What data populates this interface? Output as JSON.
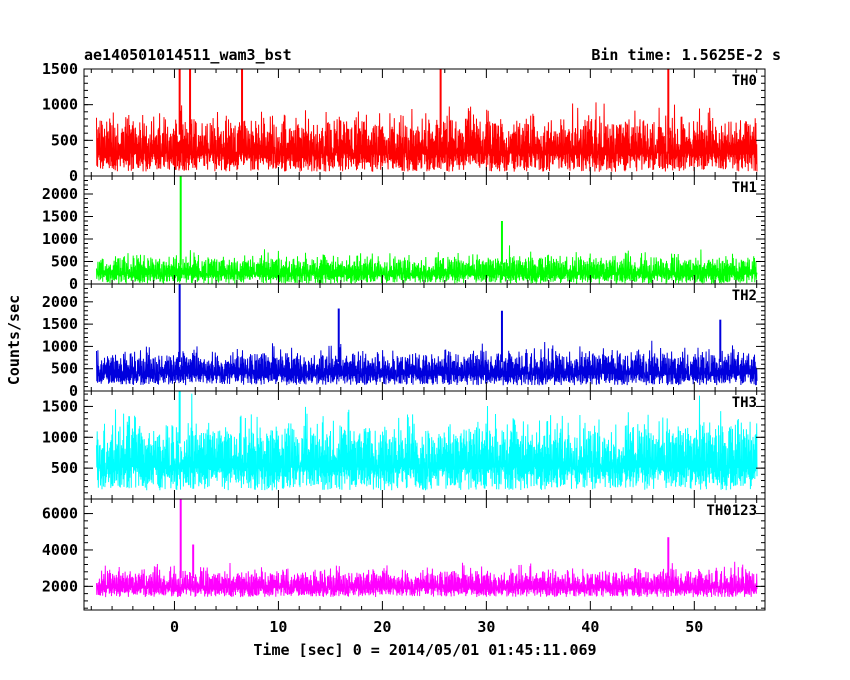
{
  "chart_data": {
    "type": "line",
    "title_left": "ae140501014511_wam3_bst",
    "title_right": "Bin time: 1.5625E-2 s",
    "xlabel": "Time [sec] 0 = 2014/05/01 01:45:11.069",
    "ylabel": "Counts/sec",
    "xlim": [
      -8.7,
      56.8
    ],
    "x_ticks": [
      0,
      10,
      20,
      30,
      40,
      50
    ],
    "data_x_range": [
      -7.5,
      56.0
    ],
    "panels": [
      {
        "name": "TH0",
        "color": "#ff0000",
        "ylim": [
          0,
          1500
        ],
        "y_ticks": [
          0,
          500,
          1000,
          1500
        ],
        "baseline": 580,
        "noise": 260,
        "floor": 0,
        "peaks": [
          {
            "x": 0.5,
            "y": 1500
          },
          {
            "x": 1.5,
            "y": 1500
          },
          {
            "x": 6.5,
            "y": 1500
          },
          {
            "x": 25.6,
            "y": 1500
          },
          {
            "x": 47.5,
            "y": 1500
          }
        ]
      },
      {
        "name": "TH1",
        "color": "#00ff00",
        "ylim": [
          0,
          2400
        ],
        "y_ticks": [
          0,
          500,
          1000,
          1500,
          2000
        ],
        "baseline": 430,
        "noise": 210,
        "floor": 0,
        "peaks": [
          {
            "x": 0.6,
            "y": 2400
          },
          {
            "x": 31.5,
            "y": 1400
          }
        ]
      },
      {
        "name": "TH2",
        "color": "#0000dd",
        "ylim": [
          0,
          2400
        ],
        "y_ticks": [
          0,
          500,
          1000,
          1500,
          2000
        ],
        "baseline": 650,
        "noise": 260,
        "floor": 0,
        "peaks": [
          {
            "x": 0.5,
            "y": 2400
          },
          {
            "x": 15.8,
            "y": 1850
          },
          {
            "x": 31.5,
            "y": 1800
          },
          {
            "x": 52.5,
            "y": 1600
          }
        ]
      },
      {
        "name": "TH3",
        "color": "#00ffff",
        "ylim": [
          0,
          1750
        ],
        "y_ticks": [
          500,
          1000,
          1500
        ],
        "baseline": 900,
        "noise": 380,
        "floor": 100,
        "peaks": [
          {
            "x": 0.5,
            "y": 1750
          }
        ]
      },
      {
        "name": "TH0123",
        "color": "#ff00ff",
        "ylim": [
          700,
          6800
        ],
        "y_ticks": [
          2000,
          4000,
          6000
        ],
        "baseline": 2450,
        "noise": 520,
        "floor": 900,
        "peaks": [
          {
            "x": 0.6,
            "y": 6800
          },
          {
            "x": 1.8,
            "y": 4300
          },
          {
            "x": 47.5,
            "y": 4700
          }
        ]
      }
    ]
  }
}
